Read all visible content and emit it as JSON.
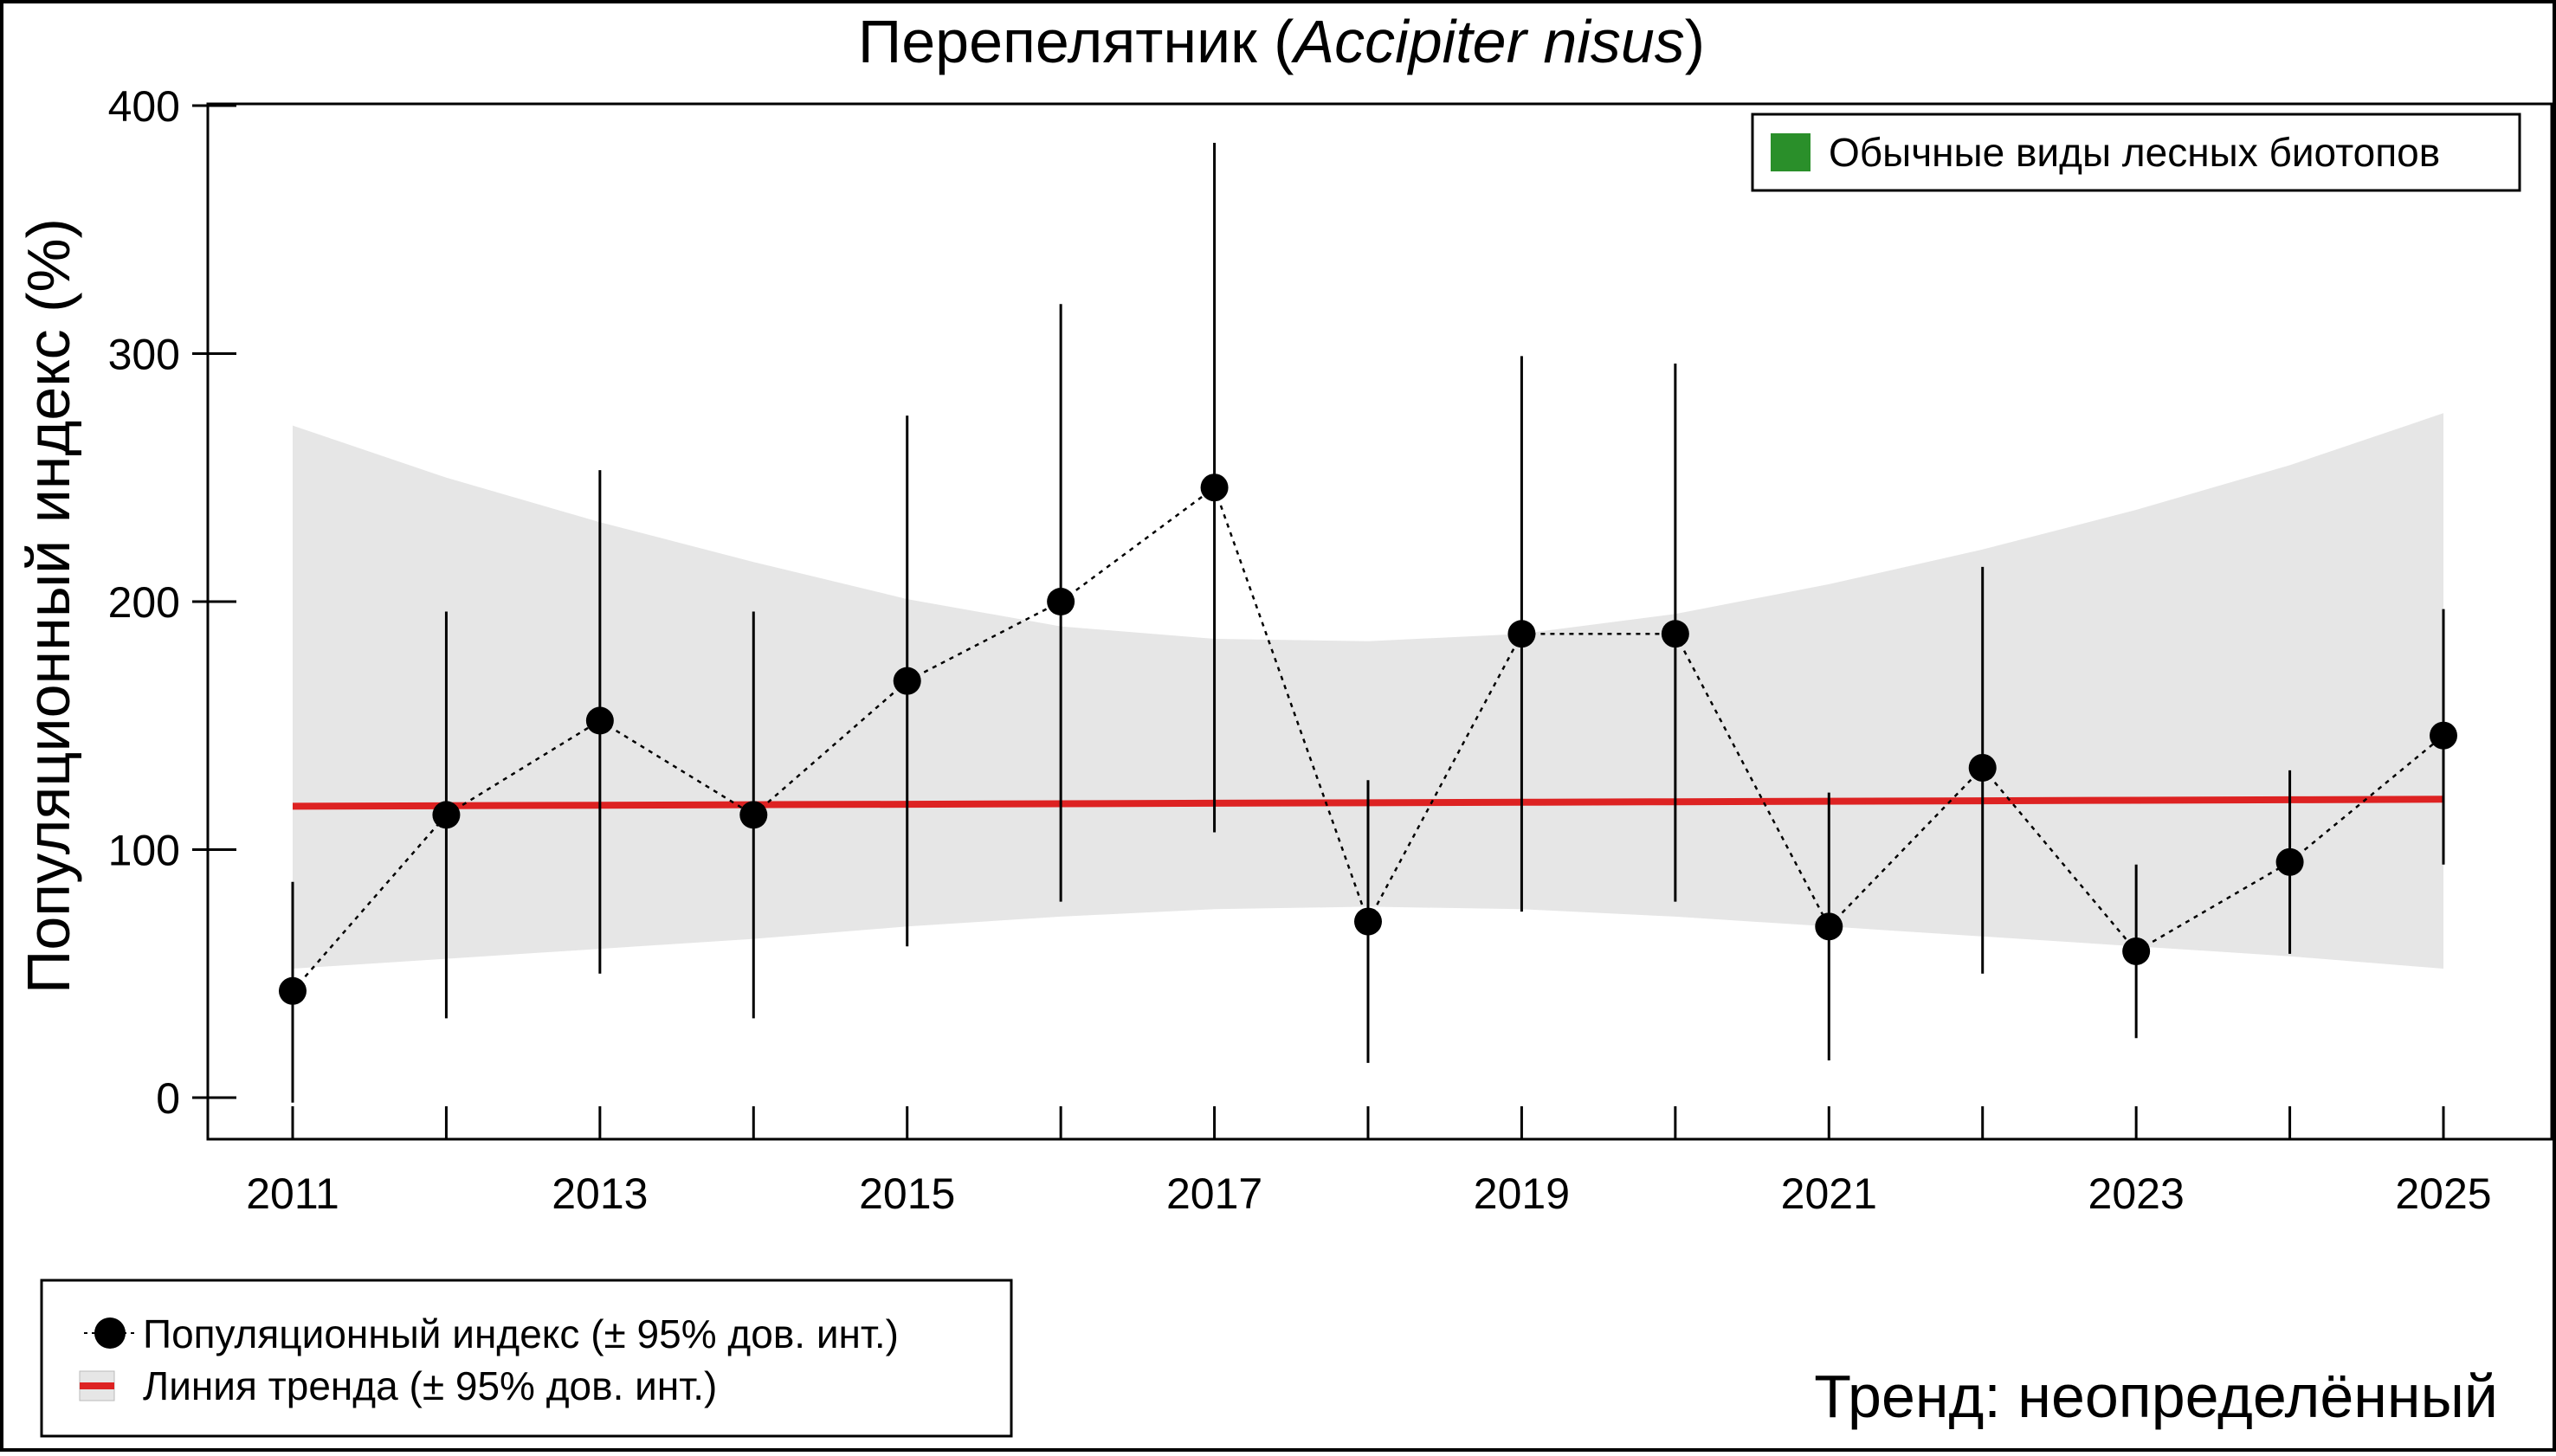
{
  "chart_data": {
    "type": "line",
    "title_main": "Перепелятник (",
    "title_italic": "Accipiter nisus",
    "title_end": ")",
    "ylabel": "Популяционный индекс (%)",
    "xlabel": "",
    "ylim": [
      0,
      400
    ],
    "xlim": [
      2011,
      2025
    ],
    "y_ticks": [
      0,
      100,
      200,
      300,
      400
    ],
    "x_ticks": [
      2011,
      2012,
      2013,
      2014,
      2015,
      2016,
      2017,
      2018,
      2019,
      2020,
      2021,
      2022,
      2023,
      2024,
      2025
    ],
    "x_tick_labels": [
      "2011",
      "2013",
      "2015",
      "2017",
      "2019",
      "2021",
      "2023",
      "2025"
    ],
    "grid": false,
    "series": [
      {
        "name": "Популяционный индекс (± 95% дов. инт.)",
        "x": [
          2011,
          2012,
          2013,
          2014,
          2015,
          2016,
          2017,
          2018,
          2019,
          2020,
          2021,
          2022,
          2023,
          2024,
          2025
        ],
        "y": [
          43,
          114,
          152,
          114,
          168,
          200,
          246,
          71,
          187,
          187,
          69,
          133,
          59,
          95,
          146
        ],
        "ci_lower": [
          -2,
          32,
          50,
          32,
          61,
          79,
          107,
          14,
          75,
          79,
          15,
          50,
          24,
          58,
          94
        ],
        "ci_upper": [
          87,
          196,
          253,
          196,
          275,
          320,
          385,
          128,
          299,
          296,
          123,
          214,
          94,
          132,
          197
        ]
      },
      {
        "name": "Линия тренда (± 95% дов. инт.)",
        "x": [
          2011,
          2012,
          2013,
          2014,
          2015,
          2016,
          2017,
          2018,
          2019,
          2020,
          2021,
          2022,
          2023,
          2024,
          2025
        ],
        "y": [
          117.5,
          117.7,
          117.9,
          118.1,
          118.3,
          118.5,
          118.7,
          118.9,
          119.1,
          119.3,
          119.5,
          119.7,
          119.9,
          120.1,
          120.3
        ],
        "ci_lower": [
          52,
          56,
          60,
          64,
          69,
          73,
          76,
          77,
          76,
          73,
          69,
          65,
          61,
          57,
          52
        ],
        "ci_upper": [
          271,
          250,
          232,
          216,
          201,
          190,
          185,
          184,
          187,
          195,
          207,
          221,
          237,
          255,
          276
        ]
      }
    ],
    "legend_group": "Обычные виды лесных биотопов",
    "legend_placement": "top-right",
    "trend_text": "Тренд: неопределённый",
    "colors": {
      "points": "#000000",
      "trend_line": "#dd2222",
      "ci_band": "#e6e6e6",
      "group_swatch": "#2a8f2a"
    }
  }
}
